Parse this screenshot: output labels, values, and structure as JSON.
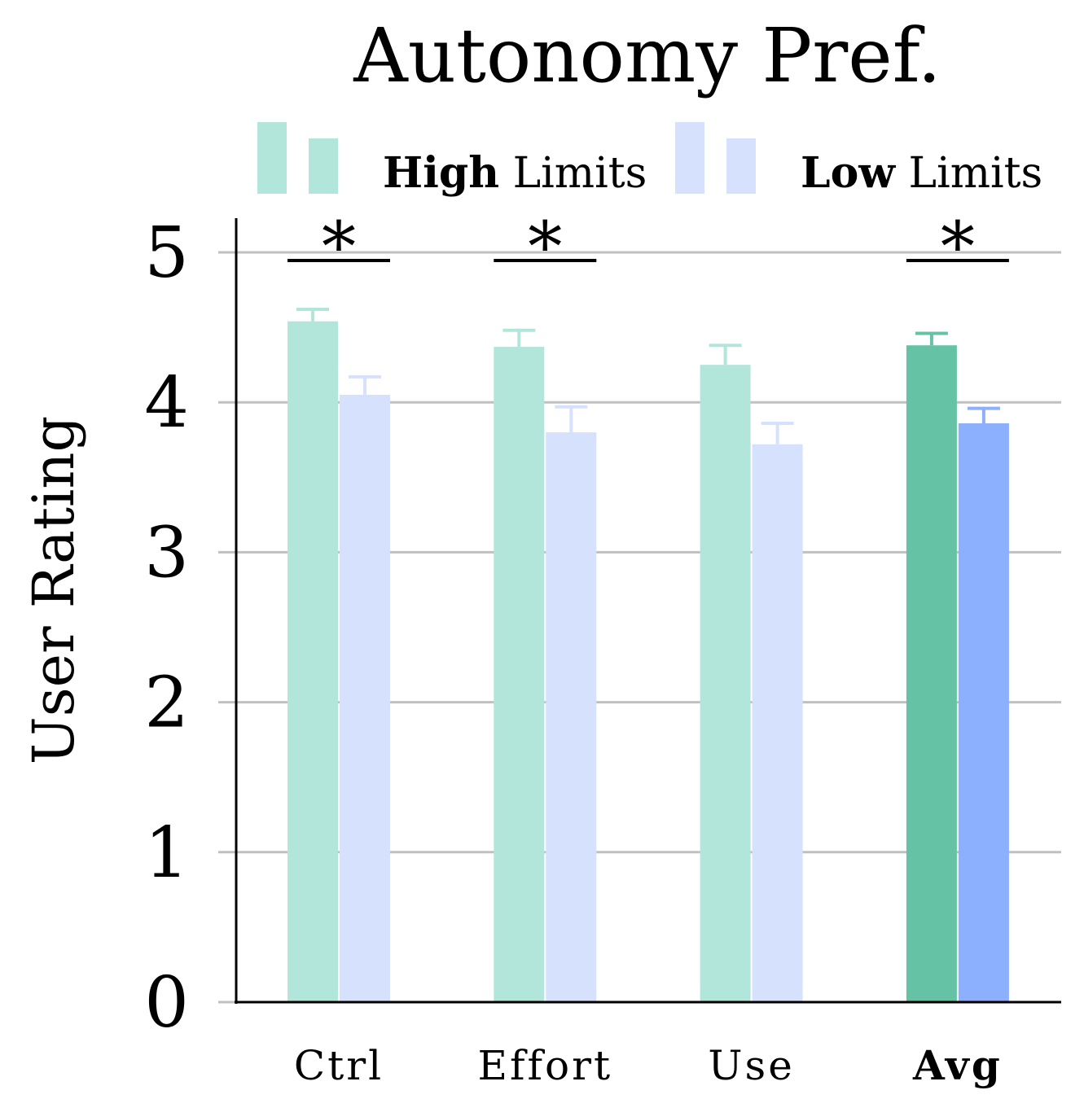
{
  "chart_data": {
    "type": "bar",
    "title": "Autonomy Pref.",
    "ylabel": "User Rating",
    "xlabel": "",
    "ylim": [
      0,
      5
    ],
    "yticks": [
      "0",
      "1",
      "2",
      "3",
      "4",
      "5"
    ],
    "grid": true,
    "legend_position": "top",
    "legend": [
      {
        "bold": "High",
        "rest": " Limits",
        "light_color": "#b3e6da",
        "dark_color": "#66c2a5"
      },
      {
        "bold": "Low",
        "rest": " Limits",
        "light_color": "#d6e2fd",
        "dark_color": "#8db0fe"
      }
    ],
    "categories": [
      "Ctrl",
      "Effort",
      "Use",
      "Avg"
    ],
    "highlight_category": "Avg",
    "series": [
      {
        "name": "High Limits",
        "values": [
          4.54,
          4.37,
          4.25,
          4.38
        ],
        "errors": [
          0.08,
          0.11,
          0.13,
          0.08
        ]
      },
      {
        "name": "Low Limits",
        "values": [
          4.05,
          3.8,
          3.72,
          3.86
        ],
        "errors": [
          0.12,
          0.17,
          0.14,
          0.1
        ]
      }
    ],
    "significance_marker": "*",
    "significant": [
      true,
      true,
      false,
      true
    ]
  }
}
